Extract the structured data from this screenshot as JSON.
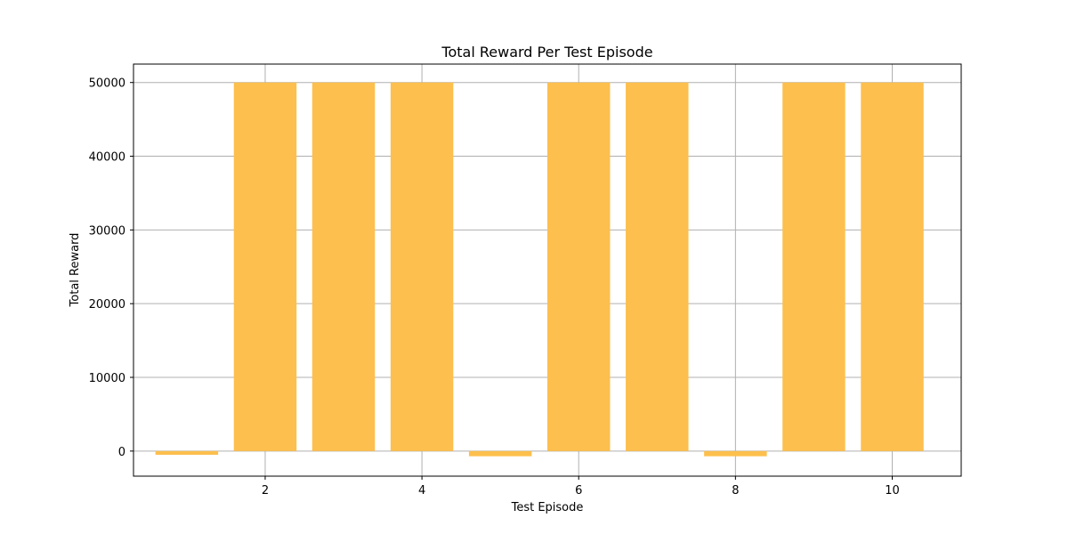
{
  "colors": {
    "bar": "#fdbf4d",
    "grid": "#b0b0b0",
    "axis": "#000000"
  },
  "chart_data": {
    "type": "bar",
    "title": "Total Reward Per Test Episode",
    "xlabel": "Test Episode",
    "ylabel": "Total Reward",
    "x": [
      1,
      2,
      3,
      4,
      5,
      6,
      7,
      8,
      9,
      10
    ],
    "values": [
      -500,
      50000,
      50000,
      50000,
      -700,
      50000,
      50000,
      -700,
      50000,
      50000
    ],
    "bar_width": 0.8,
    "xlim": [
      0.32,
      10.88
    ],
    "ylim": [
      -3400,
      52500
    ],
    "xticks": [
      2,
      4,
      6,
      8,
      10
    ],
    "xtick_labels": [
      "2",
      "4",
      "6",
      "8",
      "10"
    ],
    "yticks": [
      0,
      10000,
      20000,
      30000,
      40000,
      50000
    ],
    "ytick_labels": [
      "0",
      "10000",
      "20000",
      "30000",
      "40000",
      "50000"
    ],
    "grid": true
  }
}
